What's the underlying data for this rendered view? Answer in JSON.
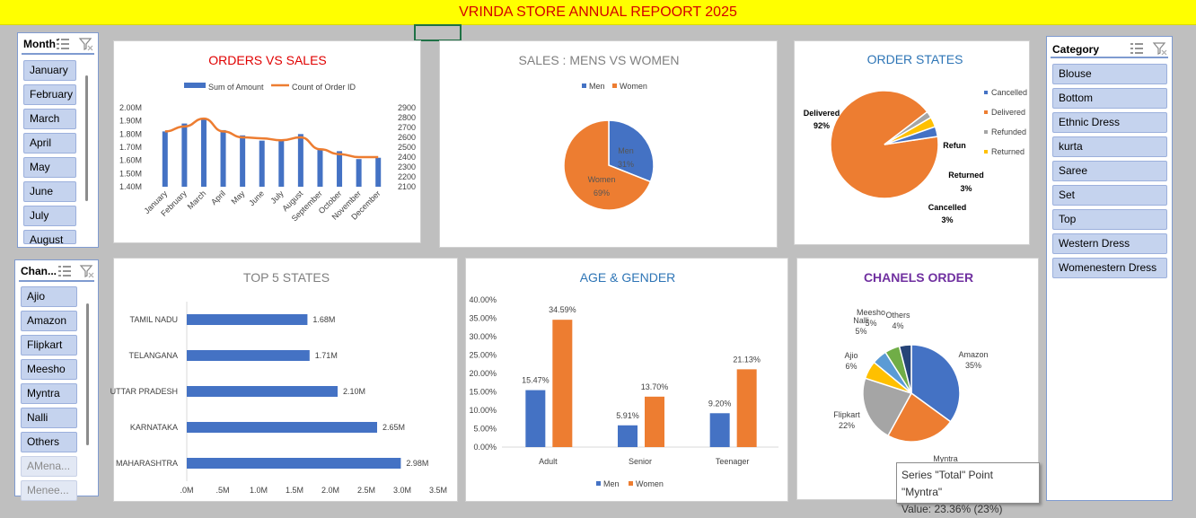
{
  "title": "VRINDA STORE ANNUAL REPOORT 2025",
  "slicers": {
    "month": {
      "title": "Month",
      "items": [
        "January",
        "February",
        "March",
        "April",
        "May",
        "June",
        "July",
        "August"
      ]
    },
    "channel": {
      "title": "Chan...",
      "items": [
        "Ajio",
        "Amazon",
        "Flipkart",
        "Meesho",
        "Myntra",
        "Nalli",
        "Others"
      ],
      "dim_items": [
        "AMena...",
        "Menee..."
      ]
    },
    "category": {
      "title": "Category",
      "items": [
        "Blouse",
        "Bottom",
        "Ethnic Dress",
        "kurta",
        "Saree",
        "Set",
        "Top",
        "Western Dress",
        "Womenestern Dress"
      ]
    }
  },
  "colors": {
    "blue": "#4472c4",
    "orange": "#ed7d31",
    "gray": "#a5a5a5",
    "yellow": "#ffc000",
    "lightblue": "#5b9bd5",
    "green": "#70ad47",
    "navy": "#264478"
  },
  "tooltip": {
    "line1": "Series \"Total\" Point \"Myntra\"",
    "line2": "Value: 23.36% (23%)"
  },
  "chart_data": [
    {
      "id": "orders_vs_sales",
      "type": "bar",
      "title": "ORDERS VS SALES",
      "categories": [
        "January",
        "February",
        "March",
        "April",
        "May",
        "June",
        "July",
        "August",
        "September",
        "October",
        "November",
        "December"
      ],
      "series": [
        {
          "name": "Sum of Amount",
          "type": "bar",
          "axis": "left",
          "values": [
            1.82,
            1.88,
            1.92,
            1.83,
            1.79,
            1.75,
            1.76,
            1.8,
            1.69,
            1.67,
            1.61,
            1.62
          ]
        },
        {
          "name": "Count of Order ID",
          "type": "line",
          "axis": "right",
          "values": [
            2660,
            2710,
            2790,
            2660,
            2600,
            2590,
            2570,
            2600,
            2480,
            2430,
            2400,
            2400
          ]
        }
      ],
      "left_ticks": [
        "2.00M",
        "1.90M",
        "1.80M",
        "1.70M",
        "1.60M",
        "1.50M",
        "1.40M"
      ],
      "left_range": [
        1.4,
        2.0
      ],
      "right_ticks": [
        "2900",
        "2800",
        "2700",
        "2600",
        "2500",
        "2400",
        "2300",
        "2200",
        "2100"
      ],
      "right_range": [
        2100,
        2900
      ]
    },
    {
      "id": "sales_men_women",
      "type": "pie",
      "title": "SALES : MENS VS WOMEN",
      "labels": [
        "Men",
        "Women"
      ],
      "values": [
        31,
        69
      ],
      "value_labels": [
        "31%",
        "69%"
      ]
    },
    {
      "id": "order_states",
      "type": "pie",
      "title": "ORDER STATES",
      "labels": [
        "Cancelled",
        "Delivered",
        "Refunded",
        "Returned"
      ],
      "values": [
        3,
        92,
        2,
        3
      ],
      "callouts": [
        {
          "name": "Delivered",
          "pct": "92%"
        },
        {
          "name": "Refun",
          "pct": ""
        },
        {
          "name": "Returned",
          "pct": "3%"
        },
        {
          "name": "Cancelled",
          "pct": "3%"
        }
      ]
    },
    {
      "id": "top5_states",
      "type": "bar",
      "orientation": "horizontal",
      "title": "TOP 5 STATES",
      "categories": [
        "TAMIL NADU",
        "TELANGANA",
        "UTTAR PRADESH",
        "KARNATAKA",
        "MAHARASHTRA"
      ],
      "values": [
        1.68,
        1.71,
        2.1,
        2.65,
        2.98
      ],
      "value_labels": [
        "1.68M",
        "1.71M",
        "2.10M",
        "2.65M",
        "2.98M"
      ],
      "x_ticks": [
        ".0M",
        ".5M",
        "1.0M",
        "1.5M",
        "2.0M",
        "2.5M",
        "3.0M",
        "3.5M"
      ],
      "xlim": [
        0,
        3.5
      ]
    },
    {
      "id": "age_gender",
      "type": "bar",
      "title": "AGE & GENDER",
      "categories": [
        "Adult",
        "Senior",
        "Teenager"
      ],
      "series": [
        {
          "name": "Men",
          "values": [
            15.47,
            5.91,
            9.2
          ],
          "labels": [
            "15.47%",
            "5.91%",
            "9.20%"
          ]
        },
        {
          "name": "Women",
          "values": [
            34.59,
            13.7,
            21.13
          ],
          "labels": [
            "34.59%",
            "13.70%",
            "21.13%"
          ]
        }
      ],
      "y_ticks": [
        "40.00%",
        "35.00%",
        "30.00%",
        "25.00%",
        "20.00%",
        "15.00%",
        "10.00%",
        "5.00%",
        "0.00%"
      ],
      "ylim": [
        0,
        40
      ]
    },
    {
      "id": "channels_order",
      "type": "pie",
      "title": "CHANELS ORDER",
      "labels": [
        "Amazon",
        "Myntra",
        "Flipkart",
        "Ajio",
        "Nalli",
        "Meesho",
        "Others"
      ],
      "values": [
        35,
        23,
        22,
        6,
        5,
        5,
        4
      ],
      "label_names": [
        "Amazon",
        "Myntra",
        "Flipkart",
        "Ajio",
        "Nalli",
        "Meesho",
        "Others"
      ],
      "label_pcts": [
        "35%",
        "",
        "22%",
        "6%",
        "5%",
        "5%",
        "4%"
      ]
    }
  ]
}
